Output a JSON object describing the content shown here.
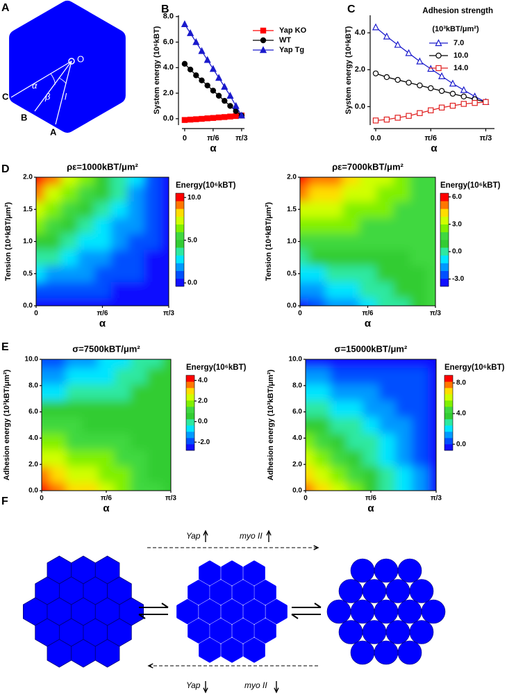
{
  "panel_labels": [
    "A",
    "B",
    "C",
    "D",
    "E",
    "F"
  ],
  "panel_a": {
    "points": [
      "O",
      "C",
      "B",
      "A"
    ],
    "angles": [
      "α",
      "β",
      "l"
    ]
  },
  "chart_data": [
    {
      "type": "line",
      "xlabel": "α",
      "ylabel": "System energy (10⁶kBT)",
      "x": [
        0,
        0.1047,
        0.2094,
        0.3142,
        0.4189,
        0.5236,
        0.6283,
        0.733,
        0.8378,
        0.9425,
        1.0472
      ],
      "xlim": [
        -0.05,
        1.1
      ],
      "xticks": [
        0,
        {
          "value": 0.5236,
          "label": "π/6"
        },
        {
          "value": 1.0472,
          "label": "π/3"
        }
      ],
      "ylim": [
        -0.5,
        8.1
      ],
      "yticks": [
        {
          "value": 0,
          "label": "0.0"
        },
        {
          "value": 2,
          "label": "2.0"
        },
        {
          "value": 4,
          "label": "4.0"
        },
        {
          "value": 6,
          "label": "6.0"
        },
        {
          "value": 8,
          "label": "8.0"
        }
      ],
      "legend": "right",
      "markers_open": false,
      "series": [
        {
          "name": "Yap KO",
          "color": "#ff0000",
          "marker": "square",
          "values": [
            -0.1,
            -0.07,
            -0.04,
            -0.01,
            0.03,
            0.06,
            0.1,
            0.13,
            0.17,
            0.21,
            0.25
          ]
        },
        {
          "name": "WT",
          "color": "#000000",
          "marker": "circle",
          "values": [
            4.3,
            3.85,
            3.4,
            3.0,
            2.6,
            2.2,
            1.8,
            1.4,
            1.0,
            0.6,
            0.25
          ]
        },
        {
          "name": "Yap Tg",
          "color": "#1a1acc",
          "marker": "triangle",
          "values": [
            7.4,
            6.7,
            6.0,
            5.3,
            4.6,
            3.9,
            3.2,
            2.5,
            1.8,
            1.0,
            0.25
          ]
        }
      ]
    },
    {
      "type": "line",
      "xlabel": "α",
      "ylabel": "System energy (10⁶kBT)",
      "x": [
        0,
        0.1047,
        0.2094,
        0.3142,
        0.4189,
        0.5236,
        0.6283,
        0.733,
        0.8378,
        0.9425,
        1.0472
      ],
      "xlim": [
        -0.02,
        1.13
      ],
      "xticks": [
        {
          "value": 0,
          "label": "0.0"
        },
        {
          "value": 0.5236,
          "label": "π/6"
        },
        {
          "value": 1.0472,
          "label": "π/3"
        }
      ],
      "ylim": [
        -1.0,
        4.95
      ],
      "yticks": [
        {
          "value": 0,
          "label": "0.0"
        },
        {
          "value": 2,
          "label": "2.0"
        },
        {
          "value": 4,
          "label": "4.0"
        }
      ],
      "legend": "top-right",
      "legend_title": "Adhesion strength",
      "legend_subtitle": "(10³kBT/μm²)",
      "markers_open": true,
      "series": [
        {
          "name": "7.0",
          "color": "#1a1acc",
          "marker": "triangle",
          "values": [
            4.3,
            3.8,
            3.35,
            2.9,
            2.45,
            2.05,
            1.65,
            1.25,
            0.9,
            0.55,
            0.25
          ]
        },
        {
          "name": "10.0",
          "color": "#000000",
          "marker": "circle",
          "values": [
            1.8,
            1.6,
            1.45,
            1.3,
            1.15,
            1.0,
            0.85,
            0.7,
            0.55,
            0.4,
            0.25
          ]
        },
        {
          "name": "14.0",
          "color": "#e02020",
          "marker": "square",
          "values": [
            -0.75,
            -0.7,
            -0.6,
            -0.5,
            -0.35,
            -0.2,
            -0.05,
            0.05,
            0.15,
            0.2,
            0.25
          ]
        }
      ]
    },
    {
      "type": "contour",
      "title": "ρε=1000kBT/μm²",
      "xlabel": "α",
      "ylabel": "Tension (10⁴kBT/μm²)",
      "colorbar_title": "Energy(10⁶kBT)",
      "x": [
        0,
        0.1309,
        0.2618,
        0.3927,
        0.5236,
        0.6545,
        0.7854,
        0.9163,
        1.0472
      ],
      "y": [
        0,
        0.25,
        0.5,
        0.75,
        1,
        1.25,
        1.5,
        1.75,
        2
      ],
      "z": [
        [
          0,
          0,
          0,
          0,
          0,
          0,
          0,
          0,
          0
        ],
        [
          1.3,
          1.1,
          0.9,
          0.8,
          0.6,
          0.5,
          0.3,
          0.2,
          0
        ],
        [
          2.5,
          2.2,
          1.9,
          1.6,
          1.3,
          0.9,
          0.6,
          0.3,
          0
        ],
        [
          3.8,
          3.3,
          2.8,
          2.3,
          1.9,
          1.4,
          0.9,
          0.5,
          0
        ],
        [
          5,
          4.4,
          3.8,
          3.1,
          2.5,
          1.9,
          1.3,
          0.6,
          0
        ],
        [
          6.3,
          5.5,
          4.7,
          3.9,
          3.1,
          2.3,
          1.6,
          0.8,
          0
        ],
        [
          7.5,
          6.6,
          5.6,
          4.7,
          3.8,
          2.8,
          1.9,
          0.9,
          0
        ],
        [
          8.8,
          7.7,
          6.6,
          5.5,
          4.4,
          3.3,
          2.2,
          1.1,
          0
        ],
        [
          10,
          8.8,
          7.5,
          6.3,
          5,
          3.8,
          2.5,
          1.3,
          0
        ]
      ],
      "xlim": [
        0,
        1.0472
      ],
      "xticks": [
        0,
        {
          "value": 0.5236,
          "label": "π/6"
        },
        {
          "value": 1.0472,
          "label": "π/3"
        }
      ],
      "ylim": [
        0,
        2
      ],
      "yticks": [
        {
          "value": 0,
          "label": "0.0"
        },
        {
          "value": 0.5,
          "label": "0.5"
        },
        {
          "value": 1,
          "label": "1.0"
        },
        {
          "value": 1.5,
          "label": "1.5"
        },
        {
          "value": 2,
          "label": "2.0"
        }
      ],
      "zlim": [
        -0.4,
        10.5
      ],
      "zticks": [
        {
          "value": 0,
          "label": "0.0"
        },
        {
          "value": 5,
          "label": "5.0"
        },
        {
          "value": 10,
          "label": "10.0"
        }
      ],
      "colors": [
        "#1010ff",
        "#0050ff",
        "#0099ff",
        "#00e5ff",
        "#2ee8a0",
        "#33cc33",
        "#40d840",
        "#80f000",
        "#d0ff00",
        "#ffdd00",
        "#ff7700",
        "#ff0000"
      ]
    },
    {
      "type": "contour",
      "title": "ρε=7000kBT/μm²",
      "xlabel": "α",
      "ylabel": "Tension (10⁴kBT/μm²)",
      "colorbar_title": "Energy(10⁶kBT)",
      "x": [
        0,
        0.1309,
        0.2618,
        0.3927,
        0.5236,
        0.6545,
        0.7854,
        0.9163,
        1.0472
      ],
      "y": [
        0,
        0.25,
        0.5,
        0.75,
        1,
        1.25,
        1.5,
        1.75,
        2
      ],
      "z": [
        [
          -3,
          -2.4,
          -1.9,
          -1.3,
          -0.8,
          -0.2,
          0.4,
          0.9,
          1.5
        ],
        [
          -1.9,
          -1.5,
          -1.0,
          -0.6,
          -0.2,
          0.2,
          0.7,
          1.1,
          1.5
        ],
        [
          -0.8,
          -0.5,
          -0.2,
          0.1,
          0.4,
          0.7,
          0.9,
          1.2,
          1.5
        ],
        [
          0.4,
          0.5,
          0.7,
          0.8,
          0.9,
          1.1,
          1.2,
          1.4,
          1.5
        ],
        [
          1.5,
          1.5,
          1.5,
          1.5,
          1.5,
          1.5,
          1.5,
          1.5,
          1.5
        ],
        [
          2.6,
          2.5,
          2.3,
          2.2,
          2.1,
          1.9,
          1.8,
          1.6,
          1.5
        ],
        [
          3.8,
          3.5,
          3.2,
          2.9,
          2.6,
          2.3,
          2.1,
          1.8,
          1.5
        ],
        [
          4.9,
          4.5,
          4.0,
          3.6,
          3.2,
          2.8,
          2.3,
          1.9,
          1.5
        ],
        [
          6,
          5.4,
          4.9,
          4.3,
          3.8,
          3.2,
          2.6,
          2.1,
          1.5
        ]
      ],
      "xlim": [
        0,
        1.0472
      ],
      "xticks": [
        0,
        {
          "value": 0.5236,
          "label": "π/6"
        },
        {
          "value": 1.0472,
          "label": "π/3"
        }
      ],
      "ylim": [
        0,
        2
      ],
      "yticks": [
        {
          "value": 0,
          "label": "0.0"
        },
        {
          "value": 0.5,
          "label": "0.5"
        },
        {
          "value": 1,
          "label": "1.0"
        },
        {
          "value": 1.5,
          "label": "1.5"
        },
        {
          "value": 2,
          "label": "2.0"
        }
      ],
      "zlim": [
        -3.8,
        6.4
      ],
      "zticks": [
        {
          "value": -3,
          "label": "-3.0"
        },
        {
          "value": 0,
          "label": "0.0"
        },
        {
          "value": 3,
          "label": "3.0"
        },
        {
          "value": 6,
          "label": "6.0"
        }
      ],
      "colors": [
        "#1010ff",
        "#0050ff",
        "#0099ff",
        "#00e5ff",
        "#2ee8a0",
        "#33cc33",
        "#40d840",
        "#80f000",
        "#d0ff00",
        "#ffdd00",
        "#ff7700",
        "#ff0000"
      ]
    },
    {
      "type": "contour",
      "title": "σ=7500kBT/μm²",
      "xlabel": "α",
      "ylabel": "Adhesion energy (10³kBT/μm²)",
      "colorbar_title": "Energy(10⁶kBT)",
      "x": [
        0,
        0.1309,
        0.2618,
        0.3927,
        0.5236,
        0.6545,
        0.7854,
        0.9163,
        1.0472
      ],
      "y": [
        0,
        1.25,
        2.5,
        3.75,
        5,
        6.25,
        7.5,
        8.75,
        10
      ],
      "z": [
        [
          4,
          3.6,
          3.1,
          2.7,
          2.3,
          1.8,
          1.4,
          0.9,
          0.5
        ],
        [
          3.3,
          2.9,
          2.6,
          2.2,
          1.9,
          1.5,
          1.2,
          0.8,
          0.5
        ],
        [
          2.5,
          2.3,
          2.0,
          1.8,
          1.5,
          1.3,
          1.0,
          0.8,
          0.5
        ],
        [
          1.8,
          1.6,
          1.4,
          1.3,
          1.1,
          1.0,
          0.8,
          0.7,
          0.5
        ],
        [
          1.0,
          0.9,
          0.9,
          0.8,
          0.8,
          0.7,
          0.6,
          0.6,
          0.5
        ],
        [
          0.3,
          0.3,
          0.3,
          0.3,
          0.4,
          0.4,
          0.4,
          0.5,
          0.5
        ],
        [
          -0.5,
          -0.4,
          -0.3,
          -0.1,
          0,
          0.1,
          0.3,
          0.4,
          0.5
        ],
        [
          -1.3,
          -1.0,
          -0.8,
          -0.6,
          -0.4,
          -0.2,
          0.1,
          0.3,
          0.5
        ],
        [
          -2,
          -1.7,
          -1.4,
          -1.1,
          -0.8,
          -0.4,
          -0.1,
          0.2,
          0.5
        ]
      ],
      "xlim": [
        0,
        1.0472
      ],
      "xticks": [
        0,
        {
          "value": 0.5236,
          "label": "π/6"
        },
        {
          "value": 1.0472,
          "label": "π/3"
        }
      ],
      "ylim": [
        0,
        10
      ],
      "yticks": [
        {
          "value": 0,
          "label": "0.0"
        },
        {
          "value": 2,
          "label": "2.0"
        },
        {
          "value": 4,
          "label": "4.0"
        },
        {
          "value": 6,
          "label": "6.0"
        },
        {
          "value": 8,
          "label": "8.0"
        },
        {
          "value": 10,
          "label": "10.0"
        }
      ],
      "zlim": [
        -2.8,
        4.5
      ],
      "zticks": [
        {
          "value": -2,
          "label": "-2.0"
        },
        {
          "value": 0,
          "label": "0.0"
        },
        {
          "value": 2,
          "label": "2.0"
        },
        {
          "value": 4,
          "label": "4.0"
        }
      ],
      "colors": [
        "#1010ff",
        "#0050ff",
        "#0099ff",
        "#00e5ff",
        "#2ee8a0",
        "#33cc33",
        "#40d840",
        "#80f000",
        "#d0ff00",
        "#ffdd00",
        "#ff7700",
        "#ff0000"
      ]
    },
    {
      "type": "contour",
      "title": "σ=15000kBT/μm²",
      "xlabel": "α",
      "ylabel": "Adhesion energy (10³kBT/μm²)",
      "colorbar_title": "Energy(10⁶kBT)",
      "x": [
        0,
        0.1309,
        0.2618,
        0.3927,
        0.5236,
        0.6545,
        0.7854,
        0.9163,
        1.0472
      ],
      "y": [
        0,
        1.25,
        2.5,
        3.75,
        5,
        6.25,
        7.5,
        8.75,
        10
      ],
      "z": [
        [
          8,
          7,
          6,
          5,
          4,
          3,
          2,
          1,
          0
        ],
        [
          7,
          6.1,
          5.3,
          4.4,
          3.5,
          2.6,
          1.8,
          0.9,
          0
        ],
        [
          6,
          5.3,
          4.5,
          3.8,
          3,
          2.3,
          1.5,
          0.8,
          0
        ],
        [
          5,
          4.4,
          3.8,
          3.1,
          2.5,
          1.9,
          1.3,
          0.6,
          0
        ],
        [
          4,
          3.5,
          3,
          2.5,
          2,
          1.5,
          1,
          0.5,
          0
        ],
        [
          3,
          2.6,
          2.3,
          1.9,
          1.5,
          1.1,
          0.8,
          0.4,
          0
        ],
        [
          2,
          1.8,
          1.5,
          1.3,
          1,
          0.8,
          0.5,
          0.3,
          0
        ],
        [
          1,
          0.9,
          0.8,
          0.6,
          0.5,
          0.4,
          0.3,
          0.1,
          0
        ],
        [
          0,
          0,
          0,
          0,
          0,
          0,
          0,
          0,
          0
        ]
      ],
      "xlim": [
        0,
        1.0472
      ],
      "xticks": [
        0,
        {
          "value": 0.5236,
          "label": "π/6"
        },
        {
          "value": 1.0472,
          "label": "π/3"
        }
      ],
      "ylim": [
        0,
        10
      ],
      "yticks": [
        {
          "value": 0,
          "label": "0.0"
        },
        {
          "value": 2,
          "label": "2.0"
        },
        {
          "value": 4,
          "label": "4.0"
        },
        {
          "value": 6,
          "label": "6.0"
        },
        {
          "value": 8,
          "label": "8.0"
        },
        {
          "value": 10,
          "label": "10.0"
        }
      ],
      "zlim": [
        -0.8,
        9.0
      ],
      "zticks": [
        {
          "value": 0,
          "label": "0.0"
        },
        {
          "value": 4,
          "label": "4.0"
        },
        {
          "value": 8,
          "label": "8.0"
        }
      ],
      "colors": [
        "#1010ff",
        "#0050ff",
        "#0099ff",
        "#00e5ff",
        "#2ee8a0",
        "#33cc33",
        "#40d840",
        "#80f000",
        "#d0ff00",
        "#ffdd00",
        "#ff7700",
        "#ff0000"
      ]
    }
  ],
  "panel_f": {
    "up": {
      "gene": "Yap",
      "motor": "myo II"
    },
    "down": {
      "gene": "Yap",
      "motor": "myo II"
    }
  }
}
